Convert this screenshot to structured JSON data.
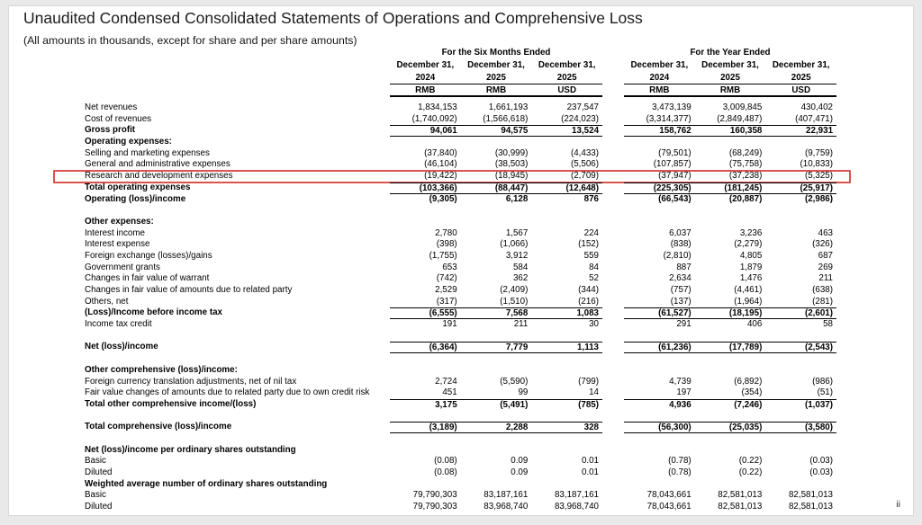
{
  "document": {
    "title": "Unaudited Condensed Consolidated Statements of Operations and Comprehensive Loss",
    "subtitle": "(All amounts in thousands, except for share and per share amounts)",
    "page_number": "ii",
    "highlight_color": "#d9534f"
  },
  "table": {
    "column_groups": [
      {
        "label": "For the Six Months Ended",
        "columns": [
          {
            "date": "December 31,",
            "year": "2024",
            "currency": "RMB"
          },
          {
            "date": "December 31,",
            "year": "2025",
            "currency": "RMB"
          },
          {
            "date": "December 31,",
            "year": "2025",
            "currency": "USD"
          }
        ]
      },
      {
        "label": "For the Year Ended",
        "columns": [
          {
            "date": "December 31,",
            "year": "2024",
            "currency": "RMB"
          },
          {
            "date": "December 31,",
            "year": "2025",
            "currency": "RMB"
          },
          {
            "date": "December 31,",
            "year": "2025",
            "currency": "USD"
          }
        ]
      }
    ],
    "rows": [
      {
        "label": "Net revenues",
        "values": [
          "1,834,153",
          "1,661,193",
          "237,547",
          "3,473,139",
          "3,009,845",
          "430,402"
        ]
      },
      {
        "label": "Cost of revenues",
        "values": [
          "(1,740,092)",
          "(1,566,618)",
          "(224,023)",
          "(3,314,377)",
          "(2,849,487)",
          "(407,471)"
        ]
      },
      {
        "label": "Gross profit",
        "bold": true,
        "rule_top": true,
        "rule_bottom": true,
        "values": [
          "94,061",
          "94,575",
          "13,524",
          "158,762",
          "160,358",
          "22,931"
        ]
      },
      {
        "label": "Operating expenses:",
        "bold": true,
        "values": []
      },
      {
        "label": "Selling and marketing expenses",
        "values": [
          "(37,840)",
          "(30,999)",
          "(4,433)",
          "(79,501)",
          "(68,249)",
          "(9,759)"
        ]
      },
      {
        "label": "General and administrative expenses",
        "values": [
          "(46,104)",
          "(38,503)",
          "(5,506)",
          "(107,857)",
          "(75,758)",
          "(10,833)"
        ]
      },
      {
        "label": "Research and development expenses",
        "highlight": true,
        "values": [
          "(19,422)",
          "(18,945)",
          "(2,709)",
          "(37,947)",
          "(37,238)",
          "(5,325)"
        ]
      },
      {
        "label": "Total operating expenses",
        "bold": true,
        "rule_top": true,
        "rule_bottom": true,
        "values": [
          "(103,366)",
          "(88,447)",
          "(12,648)",
          "(225,305)",
          "(181,245)",
          "(25,917)"
        ]
      },
      {
        "label": "Operating (loss)/income",
        "bold": true,
        "values": [
          "(9,305)",
          "6,128",
          "876",
          "(66,543)",
          "(20,887)",
          "(2,986)"
        ]
      },
      {
        "type": "spacer"
      },
      {
        "label": "Other expenses:",
        "bold": true,
        "values": []
      },
      {
        "label": "Interest income",
        "values": [
          "2,780",
          "1,567",
          "224",
          "6,037",
          "3,236",
          "463"
        ]
      },
      {
        "label": "Interest expense",
        "values": [
          "(398)",
          "(1,066)",
          "(152)",
          "(838)",
          "(2,279)",
          "(326)"
        ]
      },
      {
        "label": "Foreign exchange (losses)/gains",
        "values": [
          "(1,755)",
          "3,912",
          "559",
          "(2,810)",
          "4,805",
          "687"
        ]
      },
      {
        "label": "Government grants",
        "values": [
          "653",
          "584",
          "84",
          "887",
          "1,879",
          "269"
        ]
      },
      {
        "label": "Changes in fair value of warrant",
        "values": [
          "(742)",
          "362",
          "52",
          "2,634",
          "1,476",
          "211"
        ]
      },
      {
        "label": "Changes in fair value of amounts due to related party",
        "values": [
          "2,529",
          "(2,409)",
          "(344)",
          "(757)",
          "(4,461)",
          "(638)"
        ]
      },
      {
        "label": "Others, net",
        "values": [
          "(317)",
          "(1,510)",
          "(216)",
          "(137)",
          "(1,964)",
          "(281)"
        ]
      },
      {
        "label": "(Loss)/Income before income tax",
        "bold": true,
        "rule_top": true,
        "rule_bottom": true,
        "values": [
          "(6,555)",
          "7,568",
          "1,083",
          "(61,527)",
          "(18,195)",
          "(2,601)"
        ]
      },
      {
        "label": "Income tax credit",
        "values": [
          "191",
          "211",
          "30",
          "291",
          "406",
          "58"
        ]
      },
      {
        "type": "spacer"
      },
      {
        "label": "Net (loss)/income",
        "bold": true,
        "rule_top": true,
        "rule_bottom": true,
        "values": [
          "(6,364)",
          "7,779",
          "1,113",
          "(61,236)",
          "(17,789)",
          "(2,543)"
        ]
      },
      {
        "type": "spacer"
      },
      {
        "label": "Other comprehensive (loss)/income:",
        "bold": true,
        "values": []
      },
      {
        "label": "Foreign currency translation adjustments, net of nil tax",
        "values": [
          "2,724",
          "(5,590)",
          "(799)",
          "4,739",
          "(6,892)",
          "(986)"
        ]
      },
      {
        "label": "Fair value changes of amounts due to related party due to own credit risk",
        "values": [
          "451",
          "99",
          "14",
          "197",
          "(354)",
          "(51)"
        ]
      },
      {
        "label": "Total other comprehensive income/(loss)",
        "bold": true,
        "rule_top": true,
        "values": [
          "3,175",
          "(5,491)",
          "(785)",
          "4,936",
          "(7,246)",
          "(1,037)"
        ]
      },
      {
        "type": "spacer"
      },
      {
        "label": "Total comprehensive (loss)/income",
        "bold": true,
        "rule_top": true,
        "rule_bottom": true,
        "values": [
          "(3,189)",
          "2,288",
          "328",
          "(56,300)",
          "(25,035)",
          "(3,580)"
        ]
      },
      {
        "type": "spacer"
      },
      {
        "label": "Net (loss)/income per ordinary shares outstanding",
        "bold": true,
        "values": []
      },
      {
        "label": "Basic",
        "values": [
          "(0.08)",
          "0.09",
          "0.01",
          "(0.78)",
          "(0.22)",
          "(0.03)"
        ]
      },
      {
        "label": "Diluted",
        "values": [
          "(0.08)",
          "0.09",
          "0.01",
          "(0.78)",
          "(0.22)",
          "(0.03)"
        ]
      },
      {
        "label": "Weighted average number of ordinary shares outstanding",
        "bold": true,
        "values": []
      },
      {
        "label": "Basic",
        "values": [
          "79,790,303",
          "83,187,161",
          "83,187,161",
          "78,043,661",
          "82,581,013",
          "82,581,013"
        ]
      },
      {
        "label": "Diluted",
        "values": [
          "79,790,303",
          "83,968,740",
          "83,968,740",
          "78,043,661",
          "82,581,013",
          "82,581,013"
        ]
      }
    ]
  }
}
